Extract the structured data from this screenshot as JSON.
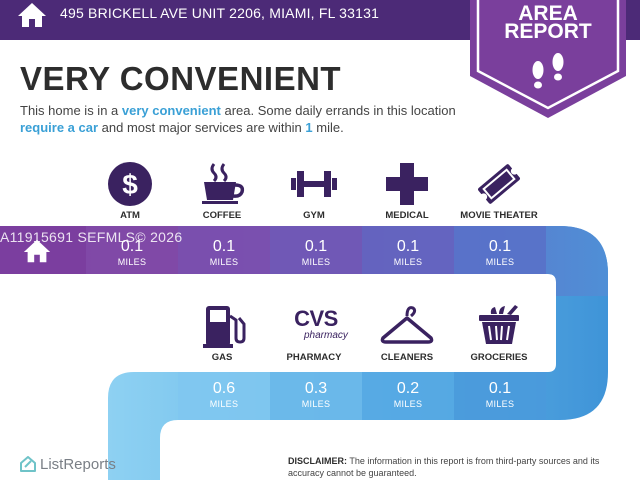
{
  "header": {
    "address": "495 BRICKELL AVE UNIT 2206, MIAMI, FL 33131",
    "badge_line1": "AREA",
    "badge_line2": "REPORT"
  },
  "summary": {
    "title": "VERY CONVENIENT",
    "desc_1": "This home is in a ",
    "desc_hl1": "very convenient",
    "desc_2": " area. Some daily errands in this location ",
    "desc_hl2": "require a car",
    "desc_3": " and most major services are within ",
    "desc_hl3": "1",
    "desc_4": " mile."
  },
  "row1": [
    {
      "label": "ATM",
      "value": "0.1",
      "unit": "MILES",
      "icon": "dollar-icon"
    },
    {
      "label": "COFFEE",
      "value": "0.1",
      "unit": "MILES",
      "icon": "coffee-icon"
    },
    {
      "label": "GYM",
      "value": "0.1",
      "unit": "MILES",
      "icon": "dumbbell-icon"
    },
    {
      "label": "MEDICAL",
      "value": "0.1",
      "unit": "MILES",
      "icon": "medical-cross-icon"
    },
    {
      "label": "MOVIE THEATER",
      "value": "0.1",
      "unit": "MILES",
      "icon": "ticket-icon"
    }
  ],
  "row2": [
    {
      "label": "GAS",
      "value": "0.6",
      "unit": "MILES",
      "icon": "gas-pump-icon"
    },
    {
      "label": "PHARMACY",
      "value": "0.3",
      "unit": "MILES",
      "icon": "cvs-pharmacy-logo"
    },
    {
      "label": "CLEANERS",
      "value": "0.2",
      "unit": "MILES",
      "icon": "hanger-icon"
    },
    {
      "label": "GROCERIES",
      "value": "0.1",
      "unit": "MILES",
      "icon": "grocery-basket-icon"
    }
  ],
  "cvs": {
    "line1": "CVS",
    "line2": "pharmacy"
  },
  "watermark": "A11915691  SEFMLS© 2026",
  "footer": {
    "logo_text": "ListReports",
    "disclaimer_label": "DISCLAIMER:",
    "disclaimer_text": " The information in this report is from third-party sources and its accuracy cannot be guaranteed."
  },
  "colors": {
    "header": "#4c2a77",
    "band_purple": "#7e4aa6",
    "band_blue": "#4a9bdb",
    "band_light_blue": "#8fd0f5",
    "icon": "#3a2260",
    "highlight": "#3aa0d6"
  }
}
